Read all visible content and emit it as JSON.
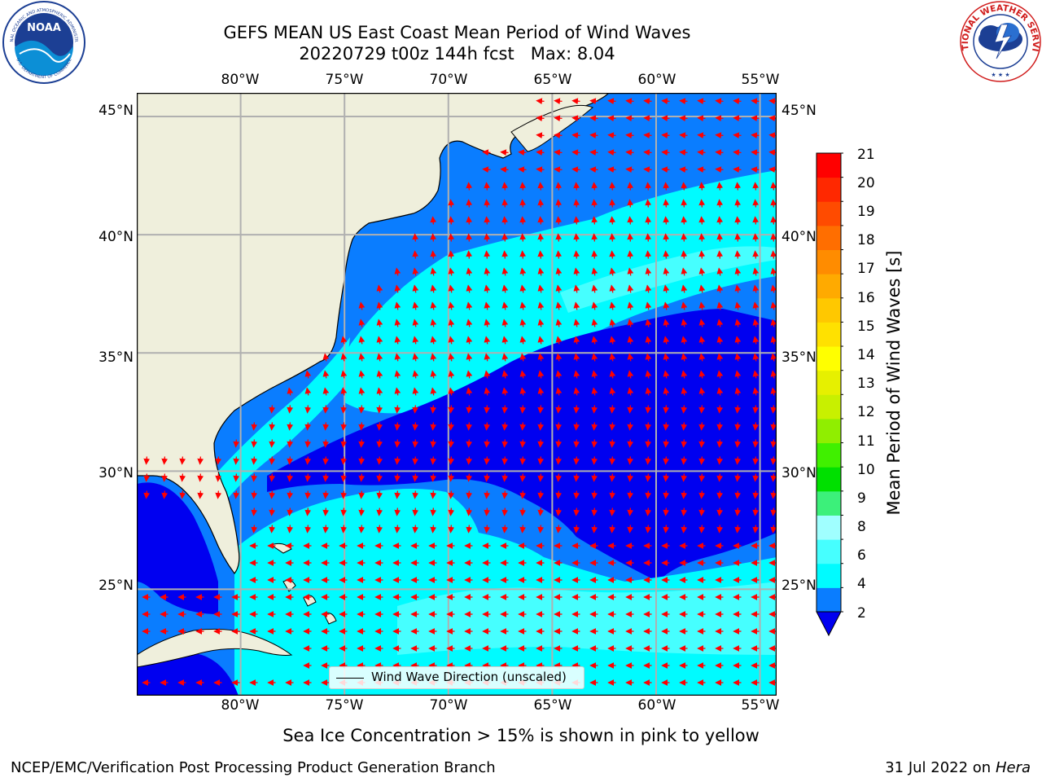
{
  "title": {
    "line1": "GEFS MEAN US East Coast Mean Period of Wind Waves",
    "line2": "20220729 t00z 144h fcst   Max: 8.04"
  },
  "logos": {
    "noaa": {
      "text": "NOAA",
      "ring_top": "NATIONAL OCEANIC AND ATMOSPHERIC ADMINISTRATION",
      "ring_bottom": "U.S. DEPARTMENT OF COMMERCE"
    },
    "nws": {
      "ring_text": "NATIONAL WEATHER SERVICE"
    }
  },
  "map": {
    "lon_range": [
      -85,
      -54.2
    ],
    "lat_range": [
      20.5,
      46.0
    ],
    "lon_ticks": [
      "80°W",
      "75°W",
      "70°W",
      "65°W",
      "60°W",
      "55°W"
    ],
    "lat_ticks": [
      "45°N",
      "40°N",
      "35°N",
      "30°N",
      "25°N"
    ],
    "gridlines": true,
    "legend": "Wind Wave Direction (unscaled)",
    "legend_position": "bottom-center",
    "colors": {
      "land": "#efefdc",
      "period_2_4": "#0a7dff",
      "period_lt_2": "#0000f0",
      "period_4_6": "#00fbff",
      "period_6_8": "#46ffff",
      "arrow": "#ff0000"
    }
  },
  "colorbar": {
    "label": "Mean Period of Wind Waves [s]",
    "ticks": [
      "21",
      "20",
      "19",
      "18",
      "17",
      "16",
      "15",
      "14",
      "13",
      "12",
      "11",
      "10",
      "9",
      "8",
      "6",
      "4",
      "2"
    ],
    "colors": [
      "#0a7dff",
      "#00fbff",
      "#46ffff",
      "#a0ffff",
      "#3cf07a",
      "#00e000",
      "#40f000",
      "#90ee00",
      "#c8f000",
      "#e6f000",
      "#ffff00",
      "#ffe100",
      "#ffc800",
      "#ffaa00",
      "#ff8c00",
      "#ff6e00",
      "#ff4b00",
      "#ff2800",
      "#ff0000"
    ],
    "under_color": "#0000f0",
    "orientation": "vertical"
  },
  "notes": {
    "sea_ice": "Sea Ice Concentration > 15% is shown in pink to yellow"
  },
  "footer": {
    "left": "NCEP/EMC/Verification Post Processing Product Generation Branch",
    "right_date": "31 Jul 2022 on ",
    "right_system": "Hera"
  }
}
